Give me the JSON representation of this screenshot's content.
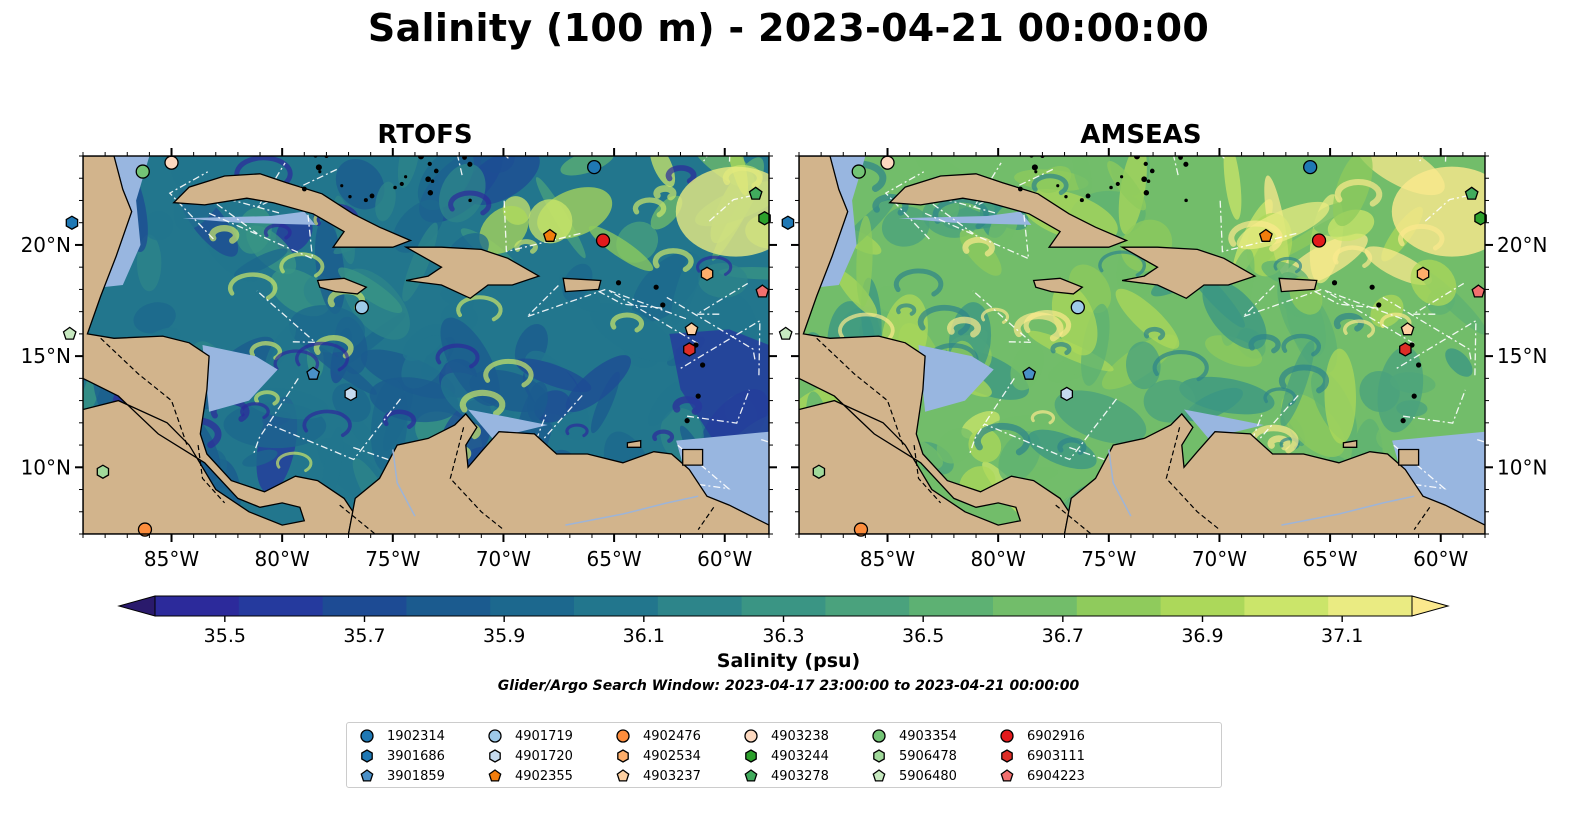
{
  "title": "Salinity (100 m) - 2023-04-21 00:00:00",
  "panels": [
    {
      "key": "rtofs",
      "title": "RTOFS",
      "variant": "low"
    },
    {
      "key": "amseas",
      "title": "AMSEAS",
      "variant": "high"
    }
  ],
  "map_axes": {
    "lon_ticks": [
      "85°W",
      "80°W",
      "75°W",
      "70°W",
      "65°W",
      "60°W"
    ],
    "lat_ticks": [
      "20°N",
      "15°N",
      "10°N"
    ],
    "extent": {
      "lon": [
        -89,
        -58
      ],
      "lat": [
        7,
        24
      ]
    }
  },
  "colorbar": {
    "label": "Salinity (psu)",
    "ticks": [
      "35.5",
      "35.7",
      "35.9",
      "36.1",
      "36.3",
      "36.5",
      "36.7",
      "36.9",
      "37.1"
    ],
    "range": [
      35.4,
      37.2
    ],
    "colors": [
      "#2a1a6c",
      "#2c2a9b",
      "#253a9e",
      "#1d4b94",
      "#1b5b8f",
      "#1c688e",
      "#22768d",
      "#2d858a",
      "#3a9584",
      "#4aa27d",
      "#5db173",
      "#72bd6a",
      "#8fcb5c",
      "#acd85a",
      "#cbe56a",
      "#eaeb82",
      "#fbe98d"
    ]
  },
  "search_window": "Glider/Argo Search Window: 2023-04-17 23:00:00 to 2023-04-21 00:00:00",
  "colors": {
    "land": "#d2b48c",
    "shallow_water": "#98b6e0"
  },
  "floats": [
    {
      "id": "1902314",
      "marker": "circle",
      "color": "#1f78b4",
      "lon": -65.9,
      "lat": 23.5
    },
    {
      "id": "3901686",
      "marker": "hexagon",
      "color": "#1f78b4",
      "lon": -89.5,
      "lat": 21.0
    },
    {
      "id": "3901859",
      "marker": "pentagon",
      "color": "#4a90c8",
      "lon": -78.6,
      "lat": 14.2
    },
    {
      "id": "4901719",
      "marker": "circle",
      "color": "#9ecae9",
      "lon": -76.4,
      "lat": 17.2
    },
    {
      "id": "4901720",
      "marker": "hexagon",
      "color": "#c6dbef",
      "lon": -76.9,
      "lat": 13.3
    },
    {
      "id": "4902355",
      "marker": "pentagon",
      "color": "#f27d0c",
      "lon": -67.9,
      "lat": 20.4
    },
    {
      "id": "4902476",
      "marker": "circle",
      "color": "#fd8d3c",
      "lon": -86.2,
      "lat": 7.2
    },
    {
      "id": "4902534",
      "marker": "hexagon",
      "color": "#fdae6b",
      "lon": -60.8,
      "lat": 18.7
    },
    {
      "id": "4903237",
      "marker": "pentagon",
      "color": "#fdd0a2",
      "lon": -61.5,
      "lat": 16.2
    },
    {
      "id": "4903238",
      "marker": "circle",
      "color": "#fdd9c0",
      "lon": -85.0,
      "lat": 23.7
    },
    {
      "id": "4903244",
      "marker": "hexagon",
      "color": "#2ca02c",
      "lon": -58.2,
      "lat": 21.2
    },
    {
      "id": "4903278",
      "marker": "pentagon",
      "color": "#41ab5d",
      "lon": -58.6,
      "lat": 22.3
    },
    {
      "id": "4903354",
      "marker": "circle",
      "color": "#74c476",
      "lon": -86.3,
      "lat": 23.3
    },
    {
      "id": "5906478",
      "marker": "hexagon",
      "color": "#a1d99b",
      "lon": -88.1,
      "lat": 9.8
    },
    {
      "id": "5906480",
      "marker": "pentagon",
      "color": "#c7e9c0",
      "lon": -89.6,
      "lat": 16.0
    },
    {
      "id": "6902916",
      "marker": "circle",
      "color": "#e31a1c",
      "lon": -65.5,
      "lat": 20.2
    },
    {
      "id": "6903111",
      "marker": "hexagon",
      "color": "#de2d26",
      "lon": -61.6,
      "lat": 15.3
    },
    {
      "id": "6904223",
      "marker": "pentagon",
      "color": "#f2706f",
      "lon": -58.3,
      "lat": 17.9
    }
  ]
}
